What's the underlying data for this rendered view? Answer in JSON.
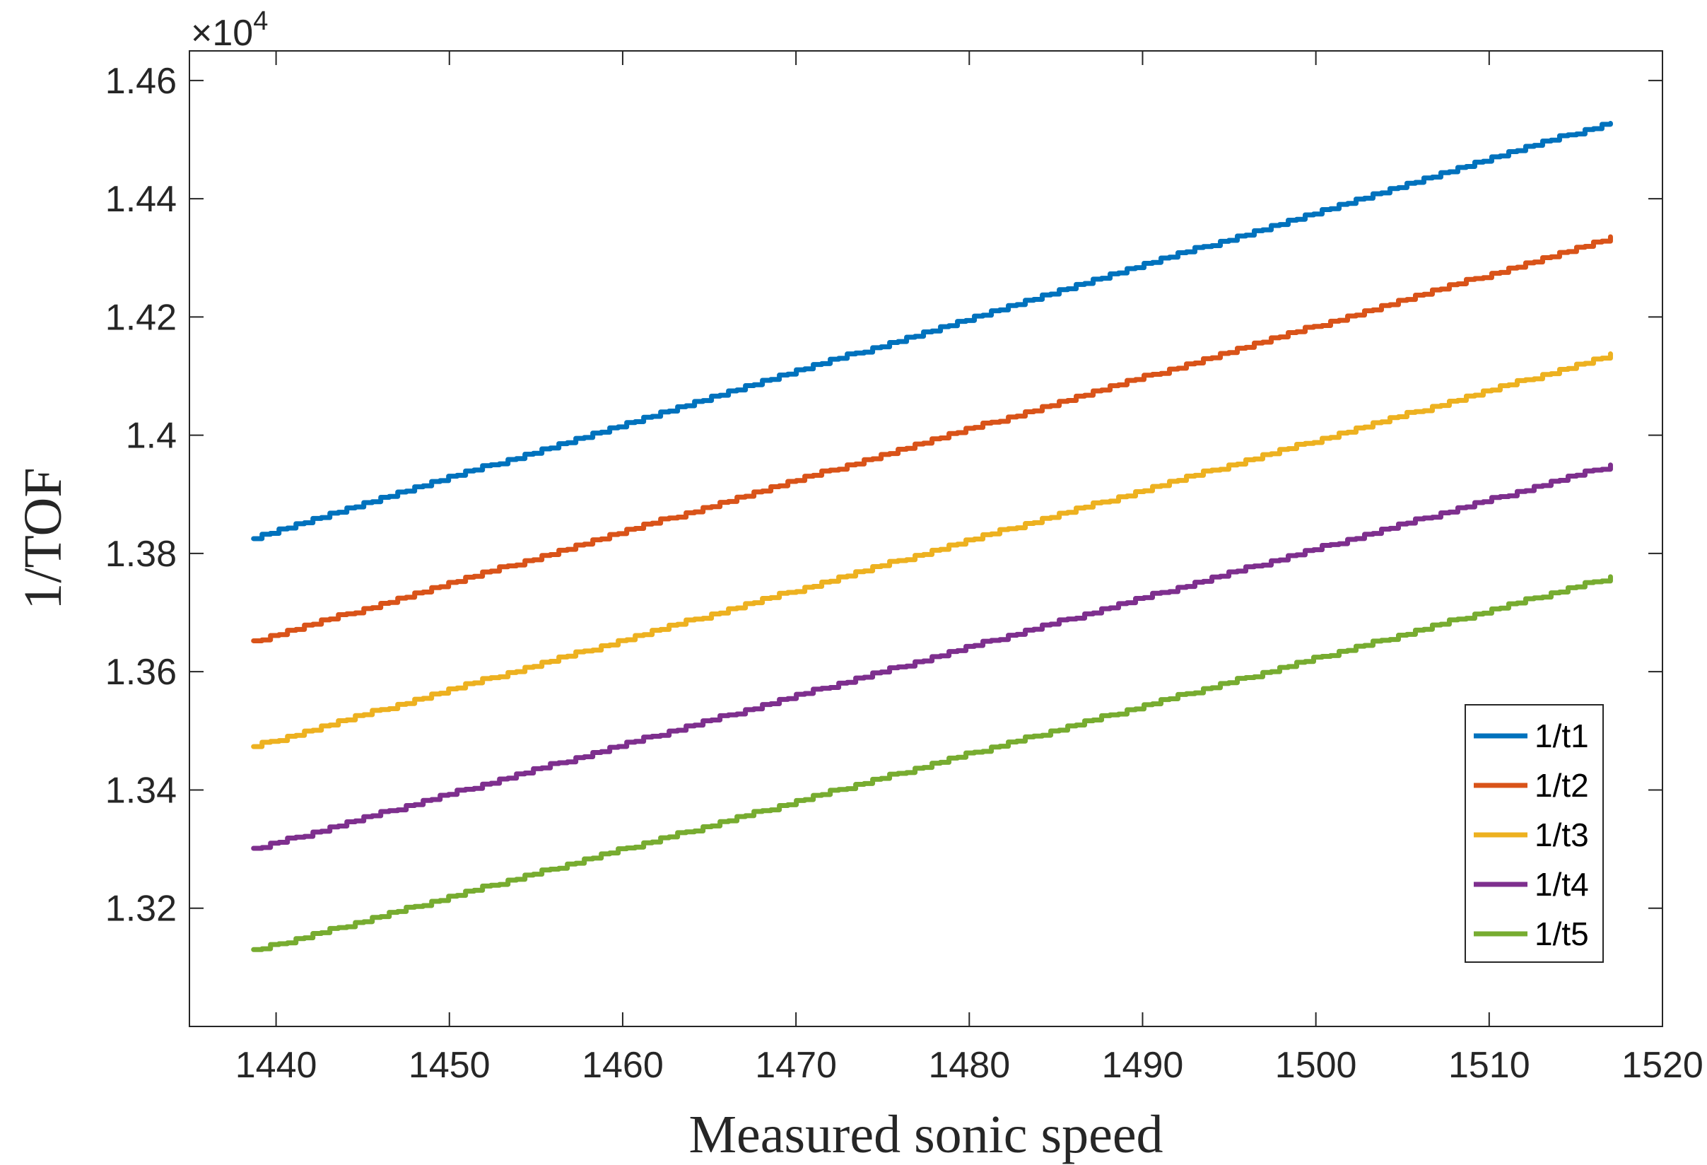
{
  "chart_data": {
    "type": "line",
    "title": "",
    "xlabel": "Measured sonic speed",
    "ylabel": "1/TOF",
    "y_multiplier": {
      "base": "×10",
      "exponent": "4"
    },
    "xlim": [
      1435,
      1520
    ],
    "ylim": [
      1.3,
      1.465
    ],
    "xticks": [
      1440,
      1450,
      1460,
      1470,
      1480,
      1490,
      1500,
      1510,
      1520
    ],
    "yticks": [
      1.32,
      1.34,
      1.36,
      1.38,
      1.4,
      1.42,
      1.44,
      1.46
    ],
    "ytick_labels": [
      "1.32",
      "1.34",
      "1.36",
      "1.38",
      "1.4",
      "1.42",
      "1.44",
      "1.46"
    ],
    "grid": false,
    "legend_position": "bottom-right",
    "x_range": [
      1438.7,
      1517.0
    ],
    "series": [
      {
        "name": "1/t1",
        "color": "#0072BD",
        "x": [
          1438.7,
          1517.0
        ],
        "y": [
          1.3827,
          1.453
        ]
      },
      {
        "name": "1/t2",
        "color": "#D95319",
        "x": [
          1438.7,
          1517.0
        ],
        "y": [
          1.3651,
          1.4333
        ]
      },
      {
        "name": "1/t3",
        "color": "#EDB120",
        "x": [
          1438.7,
          1517.0
        ],
        "y": [
          1.3474,
          1.4135
        ]
      },
      {
        "name": "1/t4",
        "color": "#7E2F8E",
        "x": [
          1438.7,
          1517.0
        ],
        "y": [
          1.33,
          1.3949
        ]
      },
      {
        "name": "1/t5",
        "color": "#77AC30",
        "x": [
          1438.7,
          1517.0
        ],
        "y": [
          1.3128,
          1.376
        ]
      }
    ]
  }
}
